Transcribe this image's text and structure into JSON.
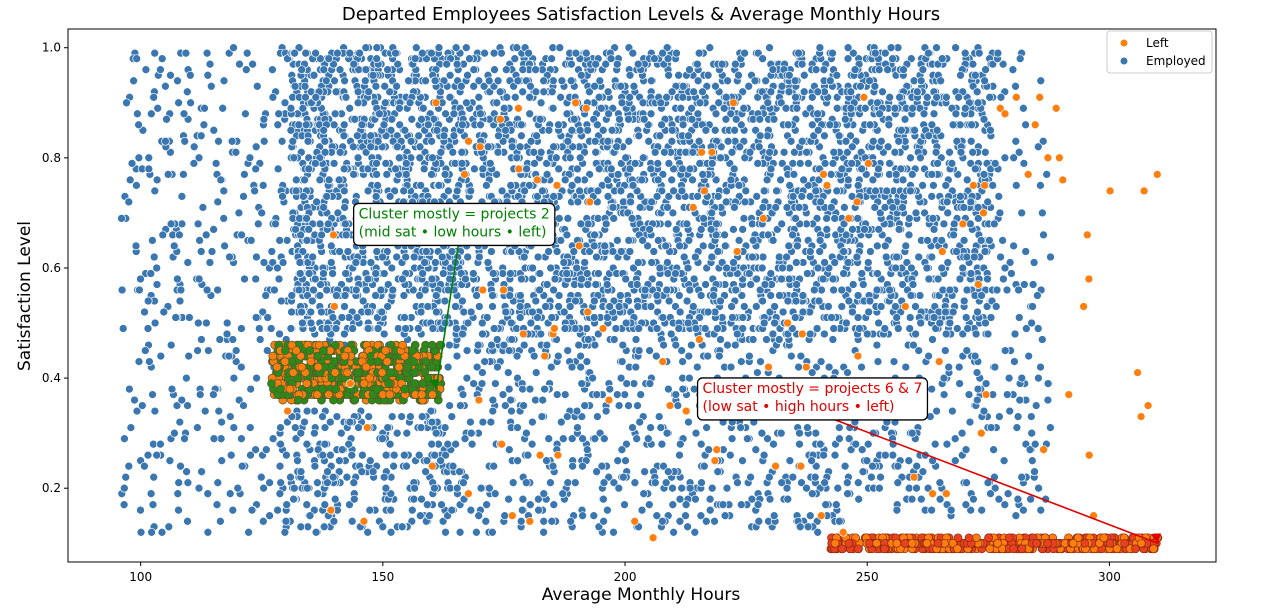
{
  "chart_data": {
    "type": "scatter",
    "title": "Departed Employees Satisfaction Levels & Average Monthly Hours",
    "xlabel": "Average Monthly Hours",
    "ylabel": "Satisfaction Level",
    "xlim": [
      85,
      322
    ],
    "ylim": [
      0.066,
      1.034
    ],
    "xticks": [
      100,
      150,
      200,
      250,
      300
    ],
    "yticks": [
      0.2,
      0.4,
      0.6,
      0.8,
      1.0
    ],
    "ytick_labels": [
      "0.2",
      "0.4",
      "0.6",
      "0.8",
      "1.0"
    ],
    "legend": {
      "position": "top-right",
      "entries": [
        "Left",
        "Employed"
      ]
    },
    "colors": {
      "left": "#ff7f0e",
      "employed": "#3a76af",
      "green_cluster": "#2a8a1a",
      "red_cluster": "#e8411f",
      "green_text": "#008000",
      "red_text": "#e00000"
    },
    "series": [
      {
        "name": "Employed",
        "regions": [
          {
            "x": [
              96,
              128
            ],
            "y": [
              0.12,
              1.0
            ],
            "n": 330
          },
          {
            "x": [
              128,
              163
            ],
            "y": [
              0.12,
              0.34
            ],
            "n": 260
          },
          {
            "x": [
              128,
              163
            ],
            "y": [
              0.46,
              1.0
            ],
            "n": 230
          },
          {
            "x": [
              163,
              245
            ],
            "y": [
              0.12,
              0.48
            ],
            "n": 620
          },
          {
            "x": [
              245,
              288
            ],
            "y": [
              0.15,
              0.48
            ],
            "n": 230
          },
          {
            "x": [
              131,
              276
            ],
            "y": [
              0.48,
              1.0
            ],
            "n": 3700
          },
          {
            "x": [
              276,
              288
            ],
            "y": [
              0.48,
              1.0
            ],
            "n": 60
          }
        ]
      },
      {
        "name": "Left",
        "regions": [
          {
            "x": [
              127,
              162
            ],
            "y": [
              0.36,
              0.46
            ],
            "n": 700,
            "cluster": "projects 2"
          },
          {
            "x": [
              242,
              310
            ],
            "y": [
              0.09,
              0.11
            ],
            "n": 520,
            "cluster": "projects 6 & 7"
          },
          {
            "x": [
              130,
              310
            ],
            "y": [
              0.1,
              0.92
            ],
            "n": 110
          }
        ]
      }
    ],
    "annotations": [
      {
        "lines": [
          "Cluster mostly = projects 2",
          "(mid sat • low hours • left)"
        ],
        "text_xy": [
          145,
          0.69
        ],
        "target_xy": [
          161,
          0.38
        ],
        "color": "green"
      },
      {
        "lines": [
          "Cluster mostly = projects 6 & 7",
          "(low sat • high hours • left)"
        ],
        "text_xy": [
          216,
          0.373
        ],
        "target_xy": [
          310,
          0.1
        ],
        "color": "red"
      }
    ]
  }
}
